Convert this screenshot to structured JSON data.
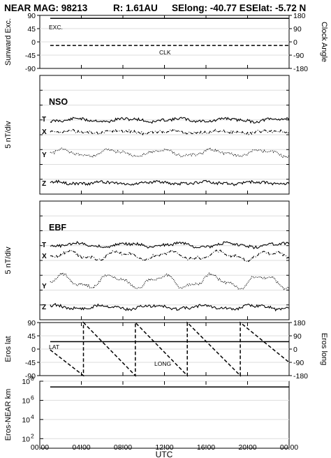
{
  "title": {
    "left": "NEAR MAG: 98213",
    "r": "R: 1.61AU",
    "selong": "SElong:  -40.77 E",
    "selat": "SElat:   -5.72 N"
  },
  "chart_data": [
    {
      "type": "line",
      "ylabel": "Sunward Exc.",
      "ylabel_right": "Clock Angle",
      "ylim": [
        -90,
        90
      ],
      "yticks_left": [
        "90",
        "45",
        "0",
        "-45",
        "-90"
      ],
      "yticks_right": [
        "180",
        "90",
        "0",
        "-90",
        "-180"
      ],
      "series": [
        {
          "name": "EXC.",
          "style": "solid",
          "x": [
            1,
            24
          ],
          "y": [
            80,
            80
          ]
        },
        {
          "name": "CLK",
          "style": "dashed",
          "x": [
            1,
            24
          ],
          "y": [
            -12,
            -12
          ]
        }
      ]
    },
    {
      "type": "line",
      "panel_name": "NSO",
      "ylabel": "5 nT/div",
      "series": [
        {
          "name": "T",
          "style": "solid"
        },
        {
          "name": "X",
          "style": "dashdot"
        },
        {
          "name": "Y",
          "style": "dotted"
        },
        {
          "name": "Z",
          "style": "solid"
        }
      ]
    },
    {
      "type": "line",
      "panel_name": "EBF",
      "ylabel": "5 nT/div",
      "series": [
        {
          "name": "T",
          "style": "solid"
        },
        {
          "name": "X",
          "style": "dashdot"
        },
        {
          "name": "Y",
          "style": "dotted"
        },
        {
          "name": "Z",
          "style": "solid"
        }
      ]
    },
    {
      "type": "line",
      "ylabel": "Eros lat",
      "ylabel_right": "Eros long",
      "ylim": [
        -90,
        90
      ],
      "yticks_left": [
        "90",
        "45",
        "0",
        "-45",
        "-90"
      ],
      "yticks_right": [
        "180",
        "90",
        "0",
        "-90",
        "-180"
      ],
      "series": [
        {
          "name": "LAT",
          "style": "solid",
          "x": [
            1,
            24
          ],
          "y": [
            25,
            25
          ]
        },
        {
          "name": "LONG",
          "style": "dashed",
          "x": [
            1,
            4.2,
            4.2,
            9.2,
            9.2,
            14.2,
            14.2,
            19.3,
            19.3,
            24
          ],
          "y": [
            -5,
            -180,
            180,
            -180,
            180,
            -180,
            180,
            -180,
            180,
            -90
          ]
        }
      ]
    },
    {
      "type": "line",
      "ylabel": "Eros-NEAR km",
      "yscale": "log",
      "ylim": [
        10,
        100000000
      ],
      "ytick_exponents": [
        "8",
        "6",
        "4",
        "2"
      ],
      "series": [
        {
          "style": "solid",
          "x": [
            1,
            24
          ],
          "y": [
            25000000,
            25000000
          ]
        }
      ]
    }
  ],
  "xaxis": {
    "label": "UTC",
    "ticks": [
      "00:00",
      "04:00",
      "08:00",
      "12:00",
      "16:00",
      "20:00",
      "00:00"
    ]
  }
}
